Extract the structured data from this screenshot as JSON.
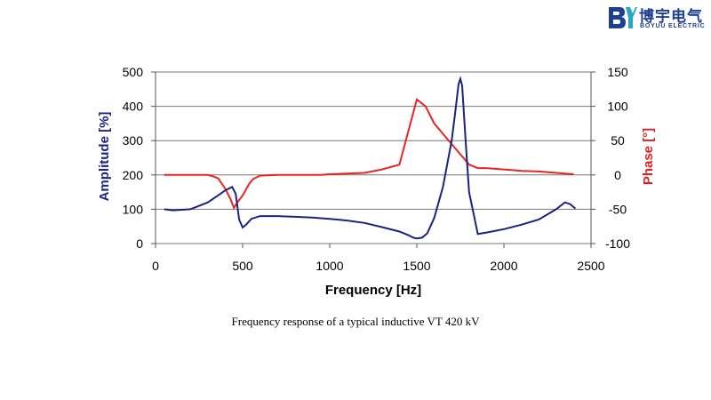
{
  "logo": {
    "mark_text": "BY",
    "name_cn": "博宇电气",
    "name_en": "BOYUU ELECTRIC",
    "color": "#1f3f93",
    "accent": "#2aa6c8"
  },
  "caption": "Frequency response of a typical inductive VT 420 kV",
  "chart_data": {
    "type": "line",
    "title": "",
    "xlabel": "Frequency [Hz]",
    "ylabel_left": "Amplitude [%]",
    "ylabel_right": "Phase [°]",
    "xlim": [
      0,
      2500
    ],
    "ylim_left": [
      0,
      500
    ],
    "ylim_right": [
      -100,
      150
    ],
    "x_ticks": [
      "0",
      "500",
      "1000",
      "1500",
      "2000",
      "2500"
    ],
    "y_ticks_left": [
      "0",
      "100",
      "200",
      "300",
      "400",
      "500"
    ],
    "y_ticks_right": [
      "-100",
      "-50",
      "0",
      "50",
      "100",
      "150"
    ],
    "grid": "horizontal",
    "series": [
      {
        "name": "Amplitude",
        "axis": "left",
        "color": "#1a237e",
        "x": [
          50,
          100,
          200,
          300,
          350,
          400,
          440,
          460,
          480,
          500,
          520,
          550,
          600,
          700,
          800,
          900,
          1000,
          1100,
          1200,
          1300,
          1400,
          1450,
          1480,
          1500,
          1530,
          1560,
          1600,
          1650,
          1700,
          1720,
          1740,
          1750,
          1760,
          1780,
          1800,
          1850,
          1900,
          2000,
          2100,
          2200,
          2300,
          2350,
          2380,
          2410
        ],
        "values": [
          100,
          97,
          100,
          120,
          137,
          155,
          165,
          145,
          70,
          47,
          55,
          72,
          80,
          80,
          78,
          76,
          72,
          67,
          60,
          48,
          35,
          25,
          17,
          15,
          17,
          30,
          75,
          165,
          300,
          380,
          465,
          480,
          460,
          300,
          150,
          28,
          32,
          42,
          55,
          70,
          100,
          120,
          115,
          102
        ]
      },
      {
        "name": "Phase",
        "axis": "right",
        "color": "#ee2222",
        "x": [
          50,
          100,
          200,
          300,
          330,
          360,
          400,
          430,
          450,
          470,
          500,
          540,
          560,
          600,
          700,
          800,
          900,
          950,
          1000,
          1100,
          1200,
          1300,
          1400,
          1500,
          1550,
          1600,
          1650,
          1700,
          1750,
          1800,
          1850,
          1900,
          2000,
          2050,
          2100,
          2200,
          2300,
          2400
        ],
        "values": [
          0,
          0,
          0,
          0,
          -2,
          -5,
          -20,
          -35,
          -48,
          -40,
          -30,
          -12,
          -6,
          -1,
          0,
          0,
          0,
          0,
          1,
          2,
          3,
          8,
          15,
          110,
          100,
          75,
          60,
          45,
          30,
          15,
          10,
          10,
          8,
          7,
          6,
          5,
          3,
          1
        ]
      }
    ]
  }
}
